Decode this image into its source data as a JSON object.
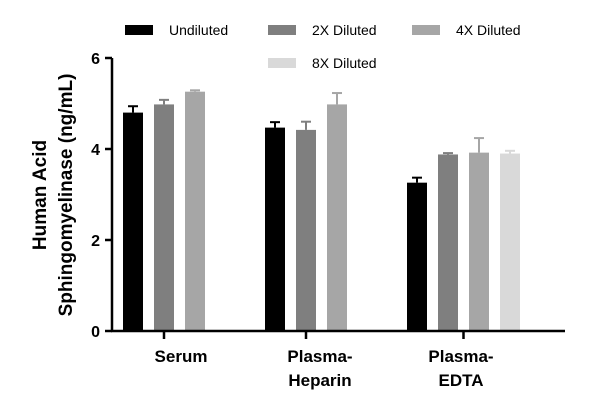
{
  "chart_data": {
    "type": "bar",
    "title": "",
    "xlabel": "",
    "ylabel_lines": [
      "Human Acid",
      "Sphingomyelinase (ng/mL)"
    ],
    "ylim": [
      0,
      6
    ],
    "yticks": [
      0,
      2,
      4,
      6
    ],
    "categories": [
      {
        "lines": [
          "Serum"
        ]
      },
      {
        "lines": [
          "Plasma-",
          "Heparin"
        ]
      },
      {
        "lines": [
          "Plasma-",
          "EDTA"
        ]
      }
    ],
    "series": [
      {
        "name": "Undiluted",
        "color": "#000000",
        "values": [
          4.8,
          4.47,
          3.26
        ],
        "errors": [
          0.14,
          0.12,
          0.11
        ]
      },
      {
        "name": "2X Diluted",
        "color": "#7f7f7f",
        "values": [
          4.98,
          4.42,
          3.88
        ],
        "errors": [
          0.1,
          0.18,
          0.03
        ]
      },
      {
        "name": "4X Diluted",
        "color": "#a6a6a6",
        "values": [
          5.26,
          4.98,
          3.92
        ],
        "errors": [
          0.03,
          0.25,
          0.32
        ]
      },
      {
        "name": "8X Diluted",
        "color": "#d9d9d9",
        "values": [
          null,
          null,
          3.9
        ],
        "errors": [
          null,
          null,
          0.06
        ]
      }
    ],
    "legend_position": "top"
  }
}
